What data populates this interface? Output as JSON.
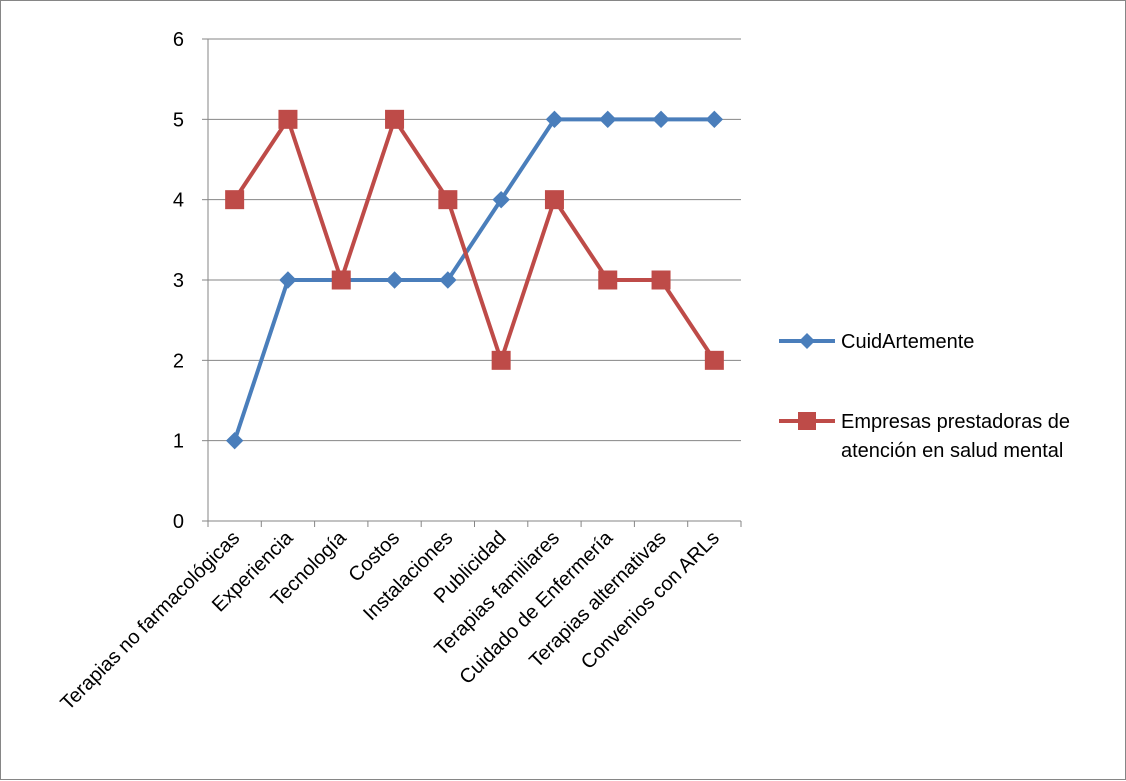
{
  "chart_data": {
    "type": "line",
    "title": "",
    "xlabel": "",
    "ylabel": "",
    "categories": [
      "Terapias no farmacológicas",
      "Experiencia",
      "Tecnología",
      "Costos",
      "Instalaciones",
      "Publicidad",
      "Terapias familiares",
      "Cuidado de Enfermería",
      "Terapias alternativas",
      "Convenios con ARLs"
    ],
    "series": [
      {
        "name": "CuidArtemente",
        "color": "#4a7ebb",
        "marker": "diamond",
        "values": [
          1,
          3,
          3,
          3,
          3,
          4,
          5,
          5,
          5,
          5
        ]
      },
      {
        "name": "Empresas prestadoras de atención en salud mental",
        "legend_lines": [
          "Empresas prestadoras de",
          "atención en salud mental"
        ],
        "color": "#be4b48",
        "marker": "square",
        "values": [
          4,
          5,
          3,
          5,
          4,
          2,
          4,
          3,
          3,
          2
        ]
      }
    ],
    "ylim": [
      0,
      6
    ],
    "yticks": [
      0,
      1,
      2,
      3,
      4,
      5,
      6
    ],
    "grid": true,
    "legend_position": "right"
  }
}
